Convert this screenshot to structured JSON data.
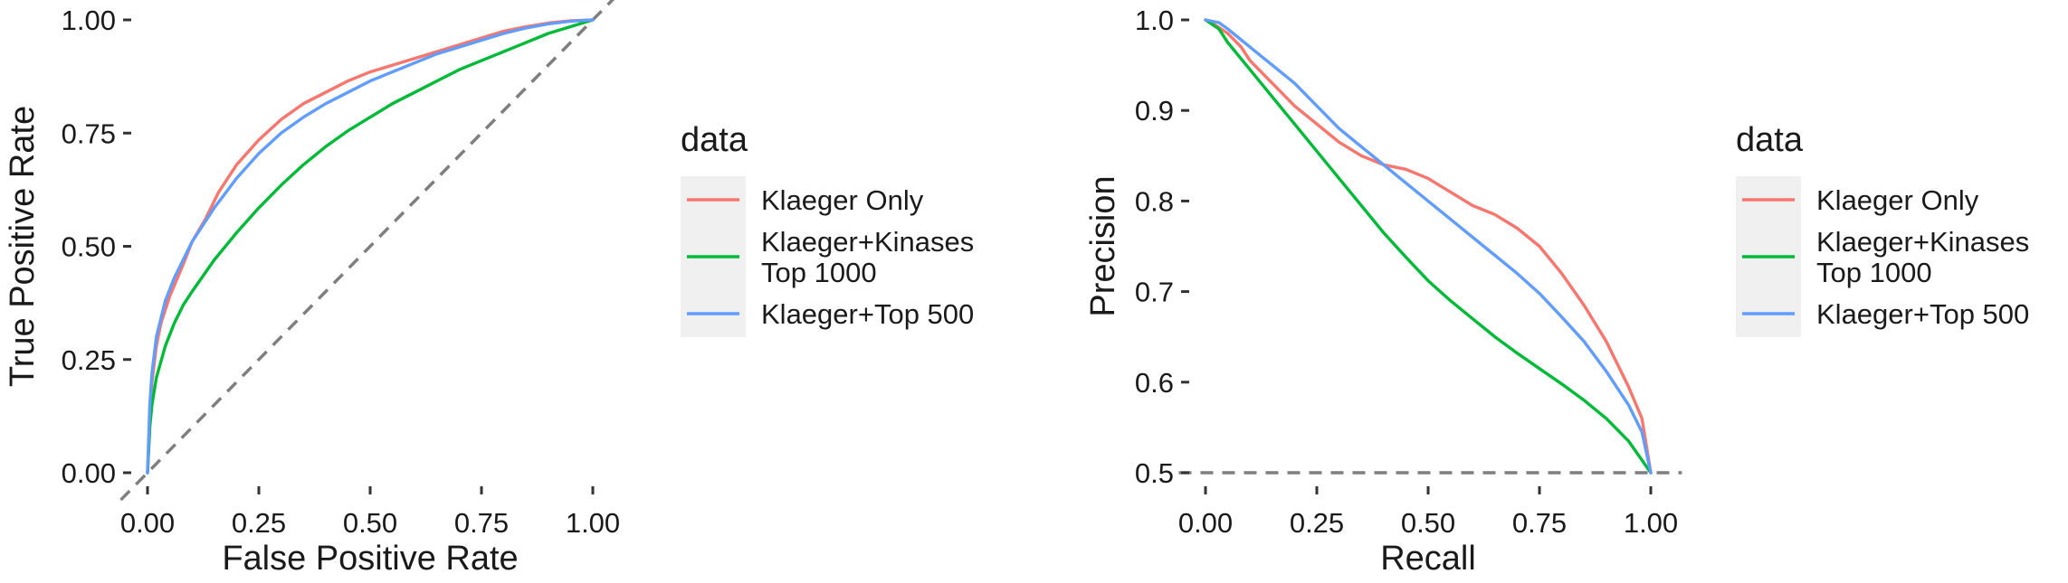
{
  "colors": {
    "klaeger_only": "#F8766D",
    "klaeger_kinases": "#00BA38",
    "klaeger_top500": "#619CFF",
    "reference": "#7f7f7f",
    "legend_key_bg": "#f0f0f0",
    "tick": "#333333"
  },
  "chart_data": [
    {
      "type": "line",
      "panel": "roc",
      "xlabel": "False Positive Rate",
      "ylabel": "True Positive Rate",
      "xlim": [
        0,
        1
      ],
      "ylim": [
        0,
        1
      ],
      "xticks": [
        "0.00",
        "0.25",
        "0.50",
        "0.75",
        "1.00"
      ],
      "yticks": [
        "0.00",
        "0.25",
        "0.50",
        "0.75",
        "1.00"
      ],
      "grid": false,
      "reference_line": {
        "style": "dashed",
        "from": [
          0,
          0
        ],
        "to": [
          1,
          1
        ]
      },
      "legend": {
        "title": "data",
        "placement": "right",
        "entries": [
          "Klaeger Only",
          "Klaeger+Kinases\nTop 1000",
          "Klaeger+Top 500"
        ]
      },
      "series": [
        {
          "name": "Klaeger Only",
          "color_key": "klaeger_only",
          "x": [
            0,
            0.01,
            0.02,
            0.03,
            0.05,
            0.08,
            0.1,
            0.13,
            0.16,
            0.2,
            0.25,
            0.3,
            0.35,
            0.4,
            0.45,
            0.5,
            0.55,
            0.6,
            0.65,
            0.7,
            0.75,
            0.8,
            0.85,
            0.9,
            0.95,
            1
          ],
          "y": [
            0,
            0.2,
            0.28,
            0.33,
            0.39,
            0.46,
            0.51,
            0.56,
            0.62,
            0.68,
            0.735,
            0.78,
            0.815,
            0.84,
            0.865,
            0.885,
            0.9,
            0.915,
            0.93,
            0.945,
            0.96,
            0.975,
            0.985,
            0.993,
            0.998,
            1
          ]
        },
        {
          "name": "Klaeger+Kinases Top 1000",
          "color_key": "klaeger_kinases",
          "x": [
            0,
            0.005,
            0.01,
            0.02,
            0.04,
            0.06,
            0.08,
            0.1,
            0.15,
            0.2,
            0.25,
            0.3,
            0.35,
            0.4,
            0.45,
            0.5,
            0.55,
            0.6,
            0.65,
            0.7,
            0.75,
            0.8,
            0.85,
            0.9,
            0.95,
            1
          ],
          "y": [
            0,
            0.1,
            0.15,
            0.21,
            0.28,
            0.33,
            0.37,
            0.4,
            0.47,
            0.53,
            0.585,
            0.635,
            0.68,
            0.72,
            0.755,
            0.785,
            0.815,
            0.84,
            0.865,
            0.89,
            0.91,
            0.93,
            0.95,
            0.97,
            0.985,
            1
          ]
        },
        {
          "name": "Klaeger+Top 500",
          "color_key": "klaeger_top500",
          "x": [
            0,
            0.005,
            0.01,
            0.02,
            0.04,
            0.06,
            0.08,
            0.1,
            0.15,
            0.2,
            0.25,
            0.3,
            0.35,
            0.4,
            0.45,
            0.5,
            0.55,
            0.6,
            0.65,
            0.7,
            0.75,
            0.8,
            0.85,
            0.9,
            0.95,
            1
          ],
          "y": [
            0,
            0.15,
            0.22,
            0.3,
            0.38,
            0.43,
            0.47,
            0.51,
            0.585,
            0.65,
            0.705,
            0.75,
            0.785,
            0.815,
            0.84,
            0.865,
            0.885,
            0.905,
            0.925,
            0.94,
            0.955,
            0.97,
            0.982,
            0.991,
            0.997,
            1
          ]
        }
      ]
    },
    {
      "type": "line",
      "panel": "precision-recall",
      "xlabel": "Recall",
      "ylabel": "Precision",
      "xlim": [
        0,
        1
      ],
      "ylim": [
        0.5,
        1
      ],
      "xticks": [
        "0.00",
        "0.25",
        "0.50",
        "0.75",
        "1.00"
      ],
      "yticks": [
        "0.5",
        "0.6",
        "0.7",
        "0.8",
        "0.9",
        "1.0"
      ],
      "grid": false,
      "reference_line": {
        "style": "dashed",
        "from": [
          0,
          0.5
        ],
        "to": [
          1.07,
          0.5
        ]
      },
      "legend": {
        "title": "data",
        "placement": "right",
        "entries": [
          "Klaeger Only",
          "Klaeger+Kinases\nTop 1000",
          "Klaeger+Top 500"
        ]
      },
      "series": [
        {
          "name": "Klaeger Only",
          "color_key": "klaeger_only",
          "x": [
            0,
            0.02,
            0.05,
            0.08,
            0.1,
            0.15,
            0.2,
            0.25,
            0.3,
            0.35,
            0.4,
            0.45,
            0.5,
            0.55,
            0.6,
            0.65,
            0.7,
            0.75,
            0.8,
            0.85,
            0.9,
            0.95,
            0.98,
            1
          ],
          "y": [
            1,
            0.995,
            0.985,
            0.97,
            0.955,
            0.93,
            0.905,
            0.885,
            0.865,
            0.85,
            0.84,
            0.835,
            0.825,
            0.81,
            0.795,
            0.785,
            0.77,
            0.75,
            0.72,
            0.685,
            0.645,
            0.595,
            0.56,
            0.5
          ]
        },
        {
          "name": "Klaeger+Kinases Top 1000",
          "color_key": "klaeger_kinases",
          "x": [
            0,
            0.03,
            0.05,
            0.1,
            0.15,
            0.2,
            0.25,
            0.3,
            0.35,
            0.4,
            0.45,
            0.5,
            0.55,
            0.6,
            0.65,
            0.7,
            0.75,
            0.8,
            0.85,
            0.9,
            0.95,
            1
          ],
          "y": [
            1,
            0.99,
            0.975,
            0.945,
            0.915,
            0.885,
            0.855,
            0.825,
            0.795,
            0.765,
            0.738,
            0.712,
            0.69,
            0.67,
            0.65,
            0.632,
            0.615,
            0.598,
            0.58,
            0.56,
            0.535,
            0.5
          ]
        },
        {
          "name": "Klaeger+Top 500",
          "color_key": "klaeger_top500",
          "x": [
            0,
            0.03,
            0.05,
            0.1,
            0.15,
            0.2,
            0.25,
            0.3,
            0.35,
            0.4,
            0.45,
            0.5,
            0.55,
            0.6,
            0.65,
            0.7,
            0.75,
            0.8,
            0.85,
            0.9,
            0.95,
            0.98,
            1
          ],
          "y": [
            1,
            0.997,
            0.99,
            0.97,
            0.95,
            0.93,
            0.905,
            0.88,
            0.86,
            0.84,
            0.82,
            0.8,
            0.78,
            0.76,
            0.74,
            0.72,
            0.698,
            0.672,
            0.645,
            0.612,
            0.575,
            0.545,
            0.5
          ]
        }
      ]
    }
  ]
}
